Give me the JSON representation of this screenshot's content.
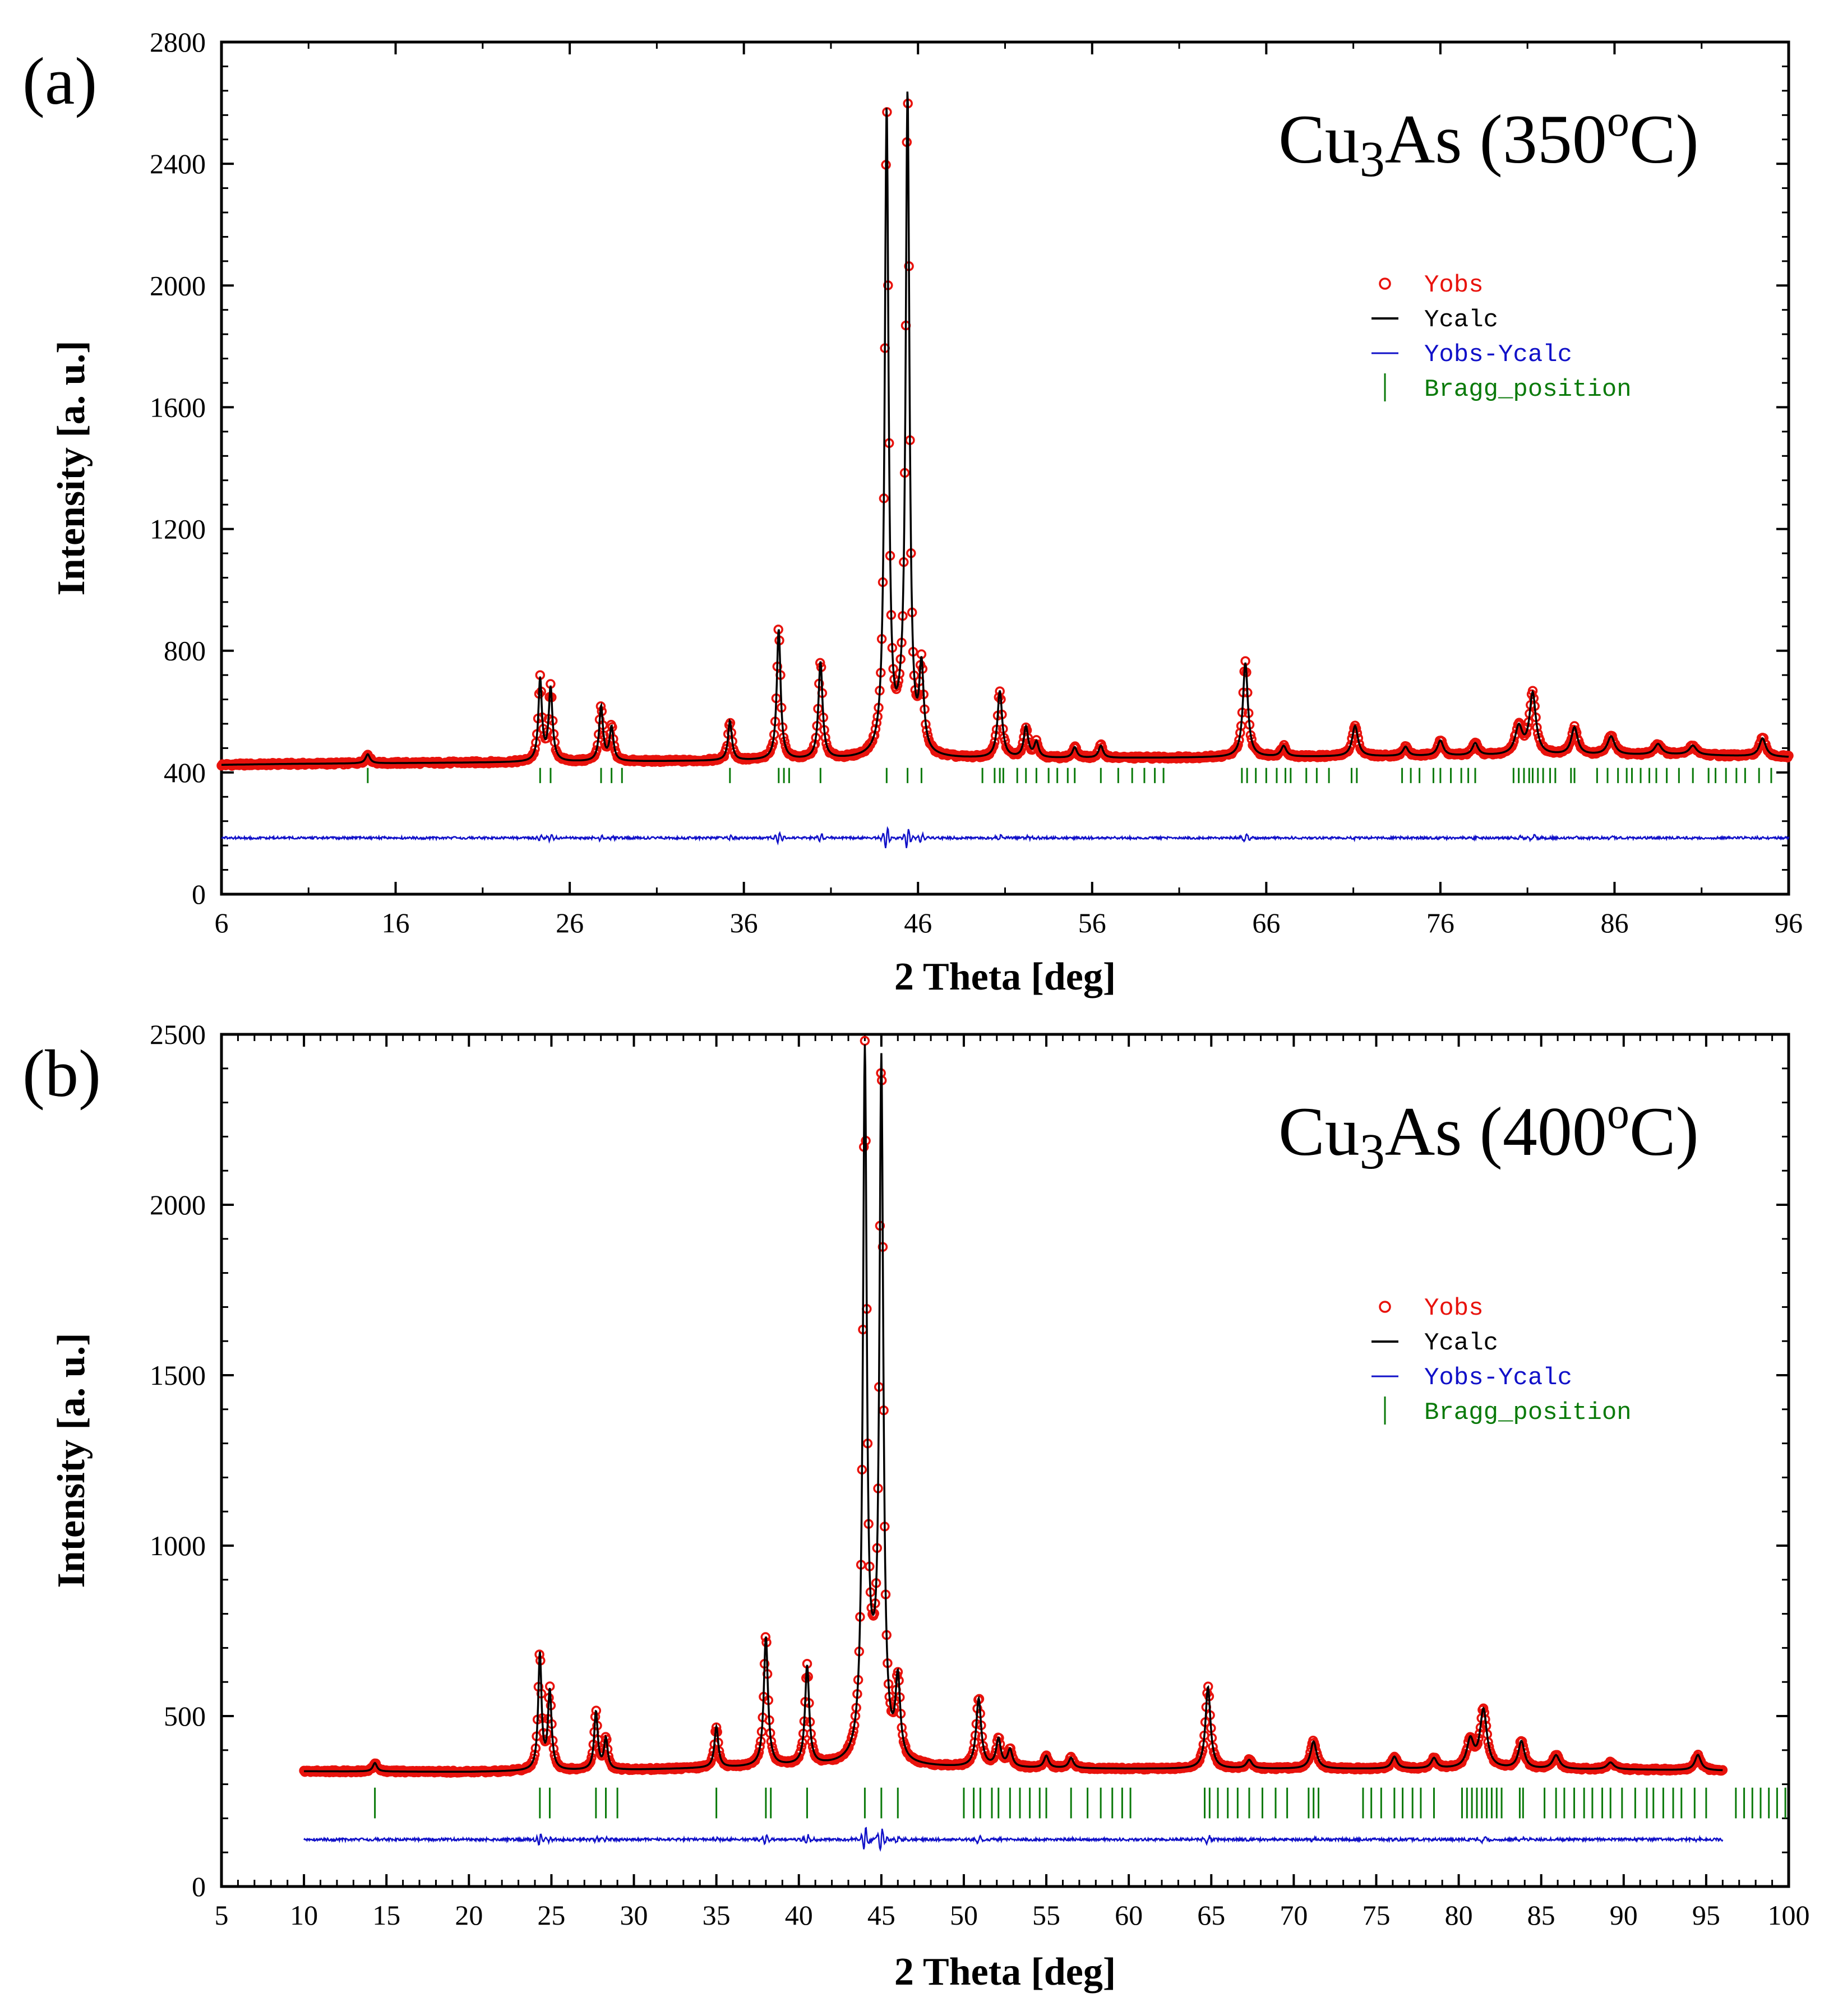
{
  "colors": {
    "obs": "#e8120c",
    "calc": "#000000",
    "diff": "#1010c8",
    "bragg": "#0a7a0a"
  },
  "legend": [
    "Yobs",
    "Ycalc",
    "Yobs-Ycalc",
    "Bragg_position"
  ],
  "chart_data": [
    {
      "type": "line",
      "panel": "(a)",
      "title_main": "Cu",
      "title_sub": "3",
      "title_rest": "As (350",
      "title_sup": "o",
      "title_end": "C)",
      "xlabel": "2 Theta [deg]",
      "ylabel": "Intensity [a. u.]",
      "xlim": [
        6,
        96
      ],
      "ylim": [
        0,
        2800
      ],
      "xticks": [
        6,
        16,
        26,
        36,
        46,
        56,
        66,
        76,
        86,
        96
      ],
      "yticks": [
        0,
        400,
        800,
        1200,
        1600,
        2000,
        2400,
        2800
      ],
      "x_range": [
        6,
        96
      ],
      "baseline": [
        [
          6,
          425
        ],
        [
          10,
          428
        ],
        [
          20,
          432
        ],
        [
          30,
          436
        ],
        [
          40,
          440
        ],
        [
          50,
          445
        ],
        [
          60,
          448
        ],
        [
          70,
          452
        ],
        [
          80,
          455
        ],
        [
          90,
          458
        ],
        [
          96,
          450
        ]
      ],
      "peaks": [
        [
          14.4,
          30,
          0.15
        ],
        [
          24.3,
          270,
          0.12
        ],
        [
          24.9,
          240,
          0.13
        ],
        [
          27.8,
          180,
          0.13
        ],
        [
          28.4,
          110,
          0.13
        ],
        [
          35.2,
          130,
          0.13
        ],
        [
          38.0,
          430,
          0.13
        ],
        [
          40.4,
          320,
          0.14
        ],
        [
          44.2,
          2120,
          0.13
        ],
        [
          45.0,
          60,
          0.3
        ],
        [
          45.4,
          2150,
          0.13
        ],
        [
          46.2,
          270,
          0.15
        ],
        [
          50.7,
          220,
          0.16
        ],
        [
          52.2,
          100,
          0.15
        ],
        [
          52.8,
          50,
          0.15
        ],
        [
          55.0,
          35,
          0.15
        ],
        [
          56.5,
          40,
          0.15
        ],
        [
          64.8,
          310,
          0.17
        ],
        [
          67.0,
          35,
          0.18
        ],
        [
          71.1,
          100,
          0.2
        ],
        [
          74.0,
          30,
          0.18
        ],
        [
          76.0,
          50,
          0.2
        ],
        [
          78.0,
          40,
          0.2
        ],
        [
          80.5,
          90,
          0.25
        ],
        [
          81.3,
          200,
          0.22
        ],
        [
          83.7,
          90,
          0.22
        ],
        [
          85.8,
          60,
          0.25
        ],
        [
          88.5,
          35,
          0.25
        ],
        [
          90.5,
          30,
          0.25
        ],
        [
          94.5,
          60,
          0.22
        ]
      ],
      "diff_level": 185,
      "bragg_y": [
        365,
        415
      ],
      "bragg": [
        14.4,
        24.3,
        24.9,
        27.8,
        28.4,
        29.0,
        35.2,
        38.0,
        38.3,
        38.6,
        40.4,
        44.2,
        45.4,
        46.2,
        49.7,
        50.4,
        50.7,
        50.9,
        51.7,
        52.2,
        52.8,
        53.5,
        54.0,
        54.6,
        55.0,
        56.5,
        57.5,
        58.3,
        59.0,
        59.6,
        60.1,
        64.6,
        64.9,
        65.4,
        66.0,
        66.6,
        67.1,
        67.4,
        68.3,
        68.9,
        69.6,
        70.9,
        71.2,
        73.8,
        74.3,
        74.8,
        75.6,
        76.0,
        76.6,
        77.2,
        77.6,
        78.0,
        80.2,
        80.5,
        80.8,
        81.1,
        81.3,
        81.6,
        81.9,
        82.3,
        82.6,
        83.5,
        83.7,
        85.0,
        85.6,
        86.2,
        86.7,
        87.0,
        87.5,
        88.0,
        88.4,
        89.0,
        89.7,
        90.5,
        91.4,
        91.8,
        92.4,
        93.0,
        93.5,
        94.3,
        95.0
      ],
      "legend_position": "right"
    },
    {
      "type": "line",
      "panel": "(b)",
      "title_main": "Cu",
      "title_sub": "3",
      "title_rest": "As (400",
      "title_sup": "o",
      "title_end": "C)",
      "xlabel": "2 Theta [deg]",
      "ylabel": "Intensity [a. u.]",
      "xlim": [
        5,
        100
      ],
      "ylim": [
        0,
        2500
      ],
      "xticks": [
        5,
        10,
        15,
        20,
        25,
        30,
        35,
        40,
        45,
        50,
        55,
        60,
        65,
        70,
        75,
        80,
        85,
        90,
        95,
        100
      ],
      "yticks": [
        0,
        500,
        1000,
        1500,
        2000,
        2500
      ],
      "x_range": [
        10,
        96
      ],
      "baseline": [
        [
          10,
          338
        ],
        [
          20,
          336
        ],
        [
          30,
          342
        ],
        [
          40,
          352
        ],
        [
          50,
          348
        ],
        [
          60,
          345
        ],
        [
          70,
          345
        ],
        [
          80,
          345
        ],
        [
          90,
          343
        ],
        [
          96,
          340
        ]
      ],
      "peaks": [
        [
          14.3,
          25,
          0.15
        ],
        [
          24.3,
          340,
          0.12
        ],
        [
          24.9,
          230,
          0.13
        ],
        [
          27.7,
          170,
          0.13
        ],
        [
          28.3,
          90,
          0.13
        ],
        [
          35.0,
          120,
          0.14
        ],
        [
          38.0,
          380,
          0.15
        ],
        [
          40.5,
          290,
          0.15
        ],
        [
          44.0,
          2030,
          0.14
        ],
        [
          44.5,
          150,
          0.35
        ],
        [
          45.0,
          2000,
          0.14
        ],
        [
          46.0,
          230,
          0.17
        ],
        [
          50.9,
          200,
          0.18
        ],
        [
          52.1,
          80,
          0.17
        ],
        [
          52.8,
          50,
          0.17
        ],
        [
          55.0,
          35,
          0.17
        ],
        [
          56.5,
          30,
          0.17
        ],
        [
          64.8,
          240,
          0.18
        ],
        [
          67.3,
          25,
          0.2
        ],
        [
          71.2,
          80,
          0.22
        ],
        [
          76.1,
          35,
          0.2
        ],
        [
          78.5,
          30,
          0.2
        ],
        [
          80.7,
          80,
          0.25
        ],
        [
          81.5,
          170,
          0.25
        ],
        [
          83.8,
          80,
          0.22
        ],
        [
          85.9,
          40,
          0.25
        ],
        [
          89.2,
          20,
          0.25
        ],
        [
          94.5,
          45,
          0.22
        ]
      ],
      "diff_level": 138,
      "bragg_y": [
        200,
        290
      ],
      "bragg": [
        14.3,
        24.3,
        24.9,
        27.7,
        28.3,
        29.0,
        35.0,
        38.0,
        38.3,
        40.5,
        44.0,
        45.0,
        46.0,
        50.0,
        50.6,
        51.0,
        51.7,
        52.1,
        52.8,
        53.4,
        54.0,
        54.6,
        55.0,
        56.5,
        57.5,
        58.3,
        59.0,
        59.6,
        60.1,
        64.6,
        64.9,
        65.4,
        66.0,
        66.6,
        67.3,
        68.1,
        68.9,
        69.6,
        70.9,
        71.2,
        71.5,
        74.2,
        74.7,
        75.3,
        76.1,
        76.6,
        77.2,
        77.7,
        78.5,
        80.2,
        80.5,
        80.8,
        81.1,
        81.4,
        81.7,
        82.0,
        82.3,
        82.6,
        83.7,
        83.9,
        85.2,
        85.9,
        86.4,
        87.0,
        87.6,
        88.1,
        88.7,
        89.2,
        89.9,
        90.7,
        91.4,
        91.8,
        92.4,
        93.0,
        93.5,
        94.3,
        95.0,
        96.8,
        97.3,
        97.8,
        98.3,
        98.8,
        99.3,
        99.8
      ]
    }
  ]
}
